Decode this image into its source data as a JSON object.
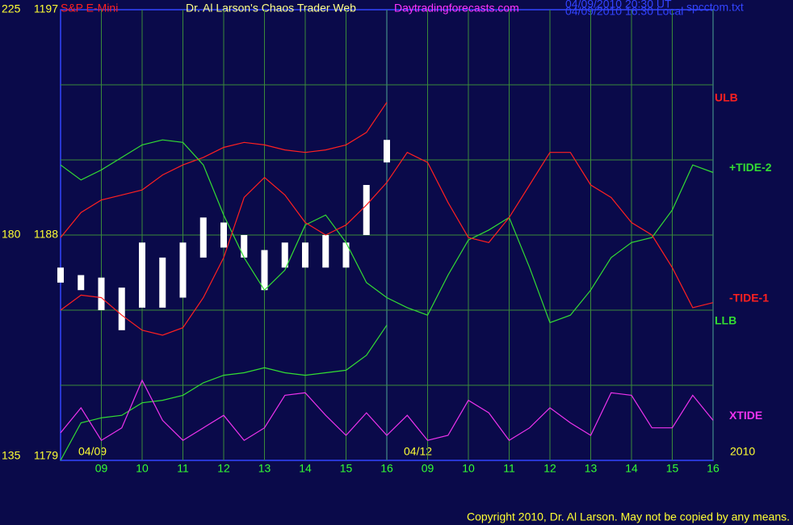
{
  "chart_data": {
    "type": "line",
    "symbol": "S&P E-Mini",
    "title": "Dr. Al Larson's Chaos Trader Web",
    "site": "Daytradingforecasts.com",
    "timestamps": [
      "04/09/2010 20:30 UT",
      "04/09/2010 16:30 Local"
    ],
    "file": "spcctom.txt",
    "dates": [
      "04/09",
      "04/12"
    ],
    "year": "2010",
    "copyright": "Copyright 2010, Dr. Al Larson. May not be copied by any means.",
    "x": [
      0,
      0.5,
      1,
      1.5,
      2,
      2.5,
      3,
      3.5,
      4,
      4.5,
      5,
      5.5,
      6,
      6.5,
      7,
      7.5,
      8,
      8.5,
      9,
      9.5,
      10,
      10.5,
      11,
      11.5,
      12,
      12.5,
      13,
      13.5,
      14,
      14.5,
      15,
      15.5,
      16
    ],
    "xlim": [
      0,
      16
    ],
    "xticks": [
      {
        "value": 1,
        "label": "09"
      },
      {
        "value": 2,
        "label": "10"
      },
      {
        "value": 3,
        "label": "11"
      },
      {
        "value": 4,
        "label": "12"
      },
      {
        "value": 5,
        "label": "13"
      },
      {
        "value": 6,
        "label": "14"
      },
      {
        "value": 7,
        "label": "15"
      },
      {
        "value": 8,
        "label": "16"
      },
      {
        "value": 9,
        "label": "09"
      },
      {
        "value": 10,
        "label": "10"
      },
      {
        "value": 11,
        "label": "11"
      },
      {
        "value": 12,
        "label": "12"
      },
      {
        "value": 13,
        "label": "13"
      },
      {
        "value": 14,
        "label": "14"
      },
      {
        "value": 15,
        "label": "15"
      },
      {
        "value": 16,
        "label": "16"
      }
    ],
    "ylim": [
      1179,
      1197
    ],
    "yticks": [
      1179,
      1188,
      1197
    ],
    "y2lim": [
      135,
      225
    ],
    "y2ticks": [
      135,
      180,
      225
    ],
    "ygrid": [
      1182,
      1185,
      1188,
      1191,
      1194
    ],
    "grid": true,
    "price": {
      "color": "#ffffff",
      "high": [
        1186.7,
        1186.4,
        1186.3,
        1185.9,
        1187.7,
        1187.1,
        1187.7,
        1188.7,
        1188.5,
        1188.0,
        1187.4,
        1187.7,
        1187.7,
        1188.0,
        1187.7,
        1190.0,
        1191.8
      ],
      "low": [
        1186.1,
        1185.8,
        1185.0,
        1184.2,
        1185.1,
        1185.1,
        1185.5,
        1187.1,
        1187.5,
        1187.1,
        1185.8,
        1186.7,
        1186.7,
        1186.7,
        1186.7,
        1188.0,
        1190.9
      ]
    },
    "series": [
      {
        "name": "ULB",
        "color": "#ff2020",
        "values": [
          1187.9,
          1188.9,
          1189.4,
          1189.6,
          1189.8,
          1190.4,
          1190.8,
          1191.1,
          1191.5,
          1191.7,
          1191.6,
          1191.4,
          1191.3,
          1191.4,
          1191.6,
          1192.1,
          1193.3,
          null,
          null,
          null,
          null,
          null,
          null,
          null,
          null,
          null,
          null,
          null,
          null,
          null,
          null,
          null,
          null
        ]
      },
      {
        "name": "+TIDE-2",
        "color": "#33dd33",
        "values": [
          1190.8,
          1190.2,
          1190.6,
          1191.1,
          1191.6,
          1191.8,
          1191.7,
          1190.8,
          1188.8,
          1187.1,
          1185.8,
          1186.6,
          1188.4,
          1188.8,
          1187.7,
          1186.1,
          1185.5,
          1185.1,
          1184.8,
          1186.4,
          1187.8,
          1188.2,
          1188.7,
          1186.7,
          1184.5,
          1184.8,
          1185.8,
          1187.1,
          1187.7,
          1187.9,
          1189.0,
          1190.8,
          1190.5
        ]
      },
      {
        "name": "-TIDE-1",
        "color": "#ff2020",
        "values": [
          1185.0,
          1185.6,
          1185.5,
          1184.8,
          1184.2,
          1184.0,
          1184.3,
          1185.5,
          1187.1,
          1189.5,
          1190.3,
          1189.6,
          1188.5,
          1188.0,
          1188.4,
          1189.2,
          1190.1,
          1191.3,
          1190.9,
          1189.3,
          1187.9,
          1187.7,
          1188.7,
          1190.0,
          1191.3,
          1191.3,
          1190.0,
          1189.5,
          1188.5,
          1188.0,
          1186.7,
          1185.1,
          1185.3
        ]
      },
      {
        "name": "LLB",
        "color": "#33dd33",
        "values": [
          1179.0,
          1180.5,
          1180.7,
          1180.8,
          1181.3,
          1181.4,
          1181.6,
          1182.1,
          1182.4,
          1182.5,
          1182.7,
          1182.5,
          1182.4,
          1182.5,
          1182.6,
          1183.2,
          1184.4,
          null,
          null,
          null,
          null,
          null,
          null,
          null,
          null,
          null,
          null,
          null,
          null,
          null,
          null,
          null,
          null
        ]
      },
      {
        "name": "XTIDE",
        "color": "#ee33ee",
        "values": [
          1180.1,
          1181.1,
          1179.8,
          1180.3,
          1182.2,
          1180.6,
          1179.8,
          1180.3,
          1180.8,
          1179.8,
          1180.3,
          1181.6,
          1181.7,
          1180.8,
          1180.0,
          1180.9,
          1180.0,
          1180.8,
          1179.8,
          1180.0,
          1181.4,
          1180.9,
          1179.8,
          1180.3,
          1181.1,
          1180.5,
          1180.0,
          1181.7,
          1181.6,
          1180.3,
          1180.3,
          1181.6,
          1180.6
        ]
      }
    ]
  }
}
